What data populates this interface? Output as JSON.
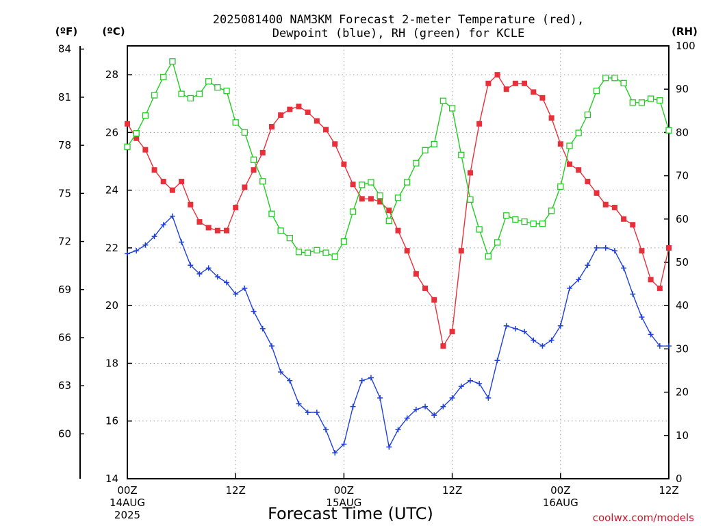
{
  "chart_data": {
    "type": "line",
    "title_line1": "2025081400 NAM3KM Forecast 2-meter Temperature (red),",
    "title_line2": "Dewpoint (blue), RH (green) for KCLE",
    "xlabel": "Forecast Time (UTC)",
    "credit": "coolwx.com/models",
    "unit_f": "(ºF)",
    "unit_c": "(ºC)",
    "unit_rh": "(RH)",
    "xlim": [
      0,
      60
    ],
    "ylim_c": [
      14,
      29
    ],
    "ylim_rh": [
      0,
      100
    ],
    "f_ticks": [
      "84",
      "81",
      "78",
      "75",
      "72",
      "69",
      "66",
      "63",
      "60"
    ],
    "c_ticks": [
      "28",
      "26",
      "24",
      "22",
      "20",
      "18",
      "16",
      "14"
    ],
    "rh_ticks": [
      "100",
      "90",
      "80",
      "70",
      "60",
      "50",
      "40",
      "30",
      "20",
      "10",
      "0"
    ],
    "x_ticks": [
      {
        "hour": 0,
        "lines": [
          "00Z",
          "14AUG",
          "2025"
        ]
      },
      {
        "hour": 12,
        "lines": [
          "12Z"
        ]
      },
      {
        "hour": 24,
        "lines": [
          "00Z",
          "15AUG"
        ]
      },
      {
        "hour": 36,
        "lines": [
          "12Z"
        ]
      },
      {
        "hour": 48,
        "lines": [
          "00Z",
          "16AUG"
        ]
      },
      {
        "hour": 60,
        "lines": [
          "12Z"
        ]
      }
    ],
    "grid": true,
    "x": [
      0,
      1,
      2,
      3,
      4,
      5,
      6,
      7,
      8,
      9,
      10,
      11,
      12,
      13,
      14,
      15,
      16,
      17,
      18,
      19,
      20,
      21,
      22,
      23,
      24,
      25,
      26,
      27,
      28,
      29,
      30,
      31,
      32,
      33,
      34,
      35,
      36,
      37,
      38,
      39,
      40,
      41,
      42,
      43,
      44,
      45,
      46,
      47,
      48,
      49,
      50,
      51,
      52,
      53,
      54,
      55,
      56,
      57,
      58,
      59,
      60
    ],
    "series": [
      {
        "name": "2-meter Temperature",
        "color": "#e8303a",
        "marker": "filled-square",
        "axis": "c",
        "values": [
          26.3,
          25.8,
          25.4,
          24.7,
          24.3,
          24.0,
          24.3,
          23.5,
          22.9,
          22.7,
          22.6,
          22.6,
          23.4,
          24.1,
          24.7,
          25.3,
          26.2,
          26.6,
          26.8,
          26.9,
          26.7,
          26.4,
          26.1,
          25.6,
          24.9,
          24.2,
          23.7,
          23.7,
          23.6,
          23.3,
          22.6,
          21.9,
          21.1,
          20.6,
          20.2,
          18.6,
          19.1,
          21.9,
          24.6,
          26.3,
          27.7,
          28.0,
          27.5,
          27.7,
          27.7,
          27.4,
          27.2,
          26.5,
          25.6,
          24.9,
          24.7,
          24.3,
          23.9,
          23.5,
          23.4,
          23.0,
          22.8,
          21.9,
          20.9,
          20.6,
          22.0
        ]
      },
      {
        "name": "Dewpoint",
        "color": "#1f3fdd",
        "marker": "plus",
        "axis": "c",
        "values": [
          21.8,
          21.9,
          22.1,
          22.4,
          22.8,
          23.1,
          22.2,
          21.4,
          21.1,
          21.3,
          21.0,
          20.8,
          20.4,
          20.6,
          19.8,
          19.2,
          18.6,
          17.7,
          17.4,
          16.6,
          16.3,
          16.3,
          15.7,
          14.9,
          15.2,
          16.5,
          17.4,
          17.5,
          16.8,
          15.1,
          15.7,
          16.1,
          16.4,
          16.5,
          16.2,
          16.5,
          16.8,
          17.2,
          17.4,
          17.3,
          16.8,
          18.1,
          19.3,
          19.2,
          19.1,
          18.8,
          18.6,
          18.8,
          19.3,
          20.6,
          20.9,
          21.4,
          22.0,
          22.0,
          21.9,
          21.3,
          20.4,
          19.6,
          19.0,
          18.6,
          18.6
        ]
      },
      {
        "name": "RH",
        "color": "#22cc22",
        "marker": "open-square",
        "axis": "rh",
        "values": [
          76.7,
          79.8,
          83.9,
          88.6,
          92.8,
          96.4,
          88.9,
          87.9,
          88.9,
          91.8,
          90.4,
          89.6,
          82.3,
          80.0,
          73.7,
          68.7,
          61.2,
          57.3,
          55.6,
          52.4,
          52.2,
          52.8,
          52.2,
          51.3,
          54.8,
          61.7,
          67.9,
          68.5,
          65.4,
          59.6,
          64.9,
          68.5,
          72.9,
          75.9,
          77.3,
          87.3,
          85.6,
          74.8,
          64.5,
          57.6,
          51.4,
          54.6,
          60.8,
          59.9,
          59.4,
          58.9,
          58.9,
          61.9,
          67.5,
          76.9,
          79.9,
          84.1,
          89.6,
          92.6,
          92.6,
          91.4,
          86.9,
          86.9,
          87.8,
          87.4,
          80.5
        ]
      }
    ]
  }
}
